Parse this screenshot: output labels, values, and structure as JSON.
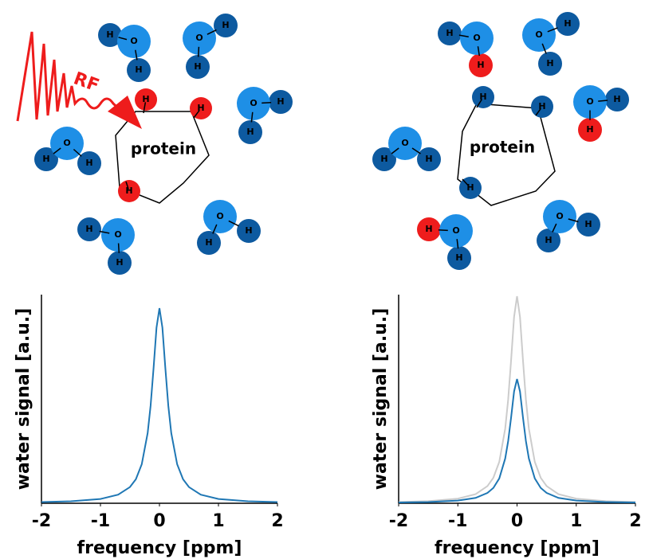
{
  "diagram": {
    "protein": "protein",
    "rf": "RF",
    "oxygen": "O",
    "hydrogen": "H"
  },
  "chart_data": [
    {
      "type": "line",
      "xlabel": "frequency [ppm]",
      "ylabel": "water signal [a.u.]",
      "x": [
        -2,
        -1.5,
        -1,
        -0.7,
        -0.5,
        -0.4,
        -0.3,
        -0.2,
        -0.15,
        -0.1,
        -0.05,
        0,
        0.05,
        0.1,
        0.15,
        0.2,
        0.3,
        0.4,
        0.5,
        0.7,
        1,
        1.5,
        2
      ],
      "series": [
        {
          "color": "#1f77b4",
          "values": [
            0.006,
            0.01,
            0.022,
            0.044,
            0.083,
            0.123,
            0.2,
            0.36,
            0.5,
            0.692,
            0.9,
            1,
            0.9,
            0.692,
            0.5,
            0.36,
            0.2,
            0.123,
            0.083,
            0.044,
            0.022,
            0.01,
            0.006
          ]
        }
      ],
      "xlim": [
        -2,
        2
      ],
      "xticks": [
        -2,
        -1,
        0,
        1,
        2
      ],
      "ylim": [
        0,
        1
      ]
    },
    {
      "type": "line",
      "xlabel": "frequency [ppm]",
      "ylabel": "water signal [a.u.]",
      "x": [
        -2,
        -1.5,
        -1,
        -0.7,
        -0.5,
        -0.4,
        -0.3,
        -0.2,
        -0.15,
        -0.1,
        -0.05,
        0,
        0.05,
        0.1,
        0.15,
        0.2,
        0.3,
        0.4,
        0.5,
        0.7,
        1,
        1.5,
        2
      ],
      "series": [
        {
          "color": "#cccccc",
          "values": [
            0.006,
            0.01,
            0.022,
            0.044,
            0.083,
            0.123,
            0.2,
            0.36,
            0.5,
            0.692,
            0.9,
            1,
            0.9,
            0.692,
            0.5,
            0.36,
            0.2,
            0.123,
            0.083,
            0.044,
            0.022,
            0.01,
            0.006
          ]
        },
        {
          "color": "#1f77b4",
          "values": [
            0.004,
            0.006,
            0.013,
            0.026,
            0.05,
            0.074,
            0.12,
            0.216,
            0.3,
            0.415,
            0.54,
            0.6,
            0.54,
            0.415,
            0.3,
            0.216,
            0.12,
            0.074,
            0.05,
            0.026,
            0.013,
            0.006,
            0.004
          ]
        }
      ],
      "xlim": [
        -2,
        2
      ],
      "xticks": [
        -2,
        -1,
        0,
        1,
        2
      ],
      "ylim": [
        0,
        1
      ]
    }
  ]
}
